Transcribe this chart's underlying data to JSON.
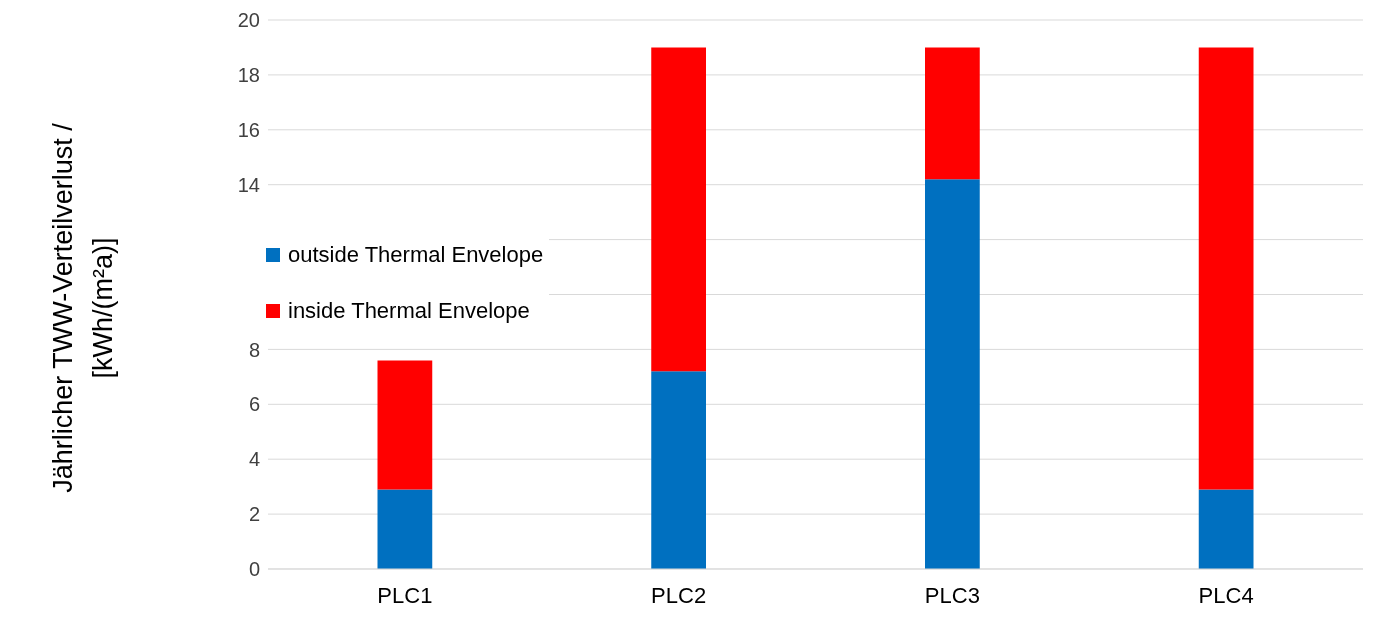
{
  "chart_data": {
    "type": "bar",
    "stacked": true,
    "ylabel": "Jährlicher TWW-Verteilverlust / [kWh/(m²a)]",
    "categories": [
      "PLC1",
      "PLC2",
      "PLC3",
      "PLC4"
    ],
    "series": [
      {
        "name": "outside Thermal Envelope",
        "color": "#0070c0",
        "values": [
          2.9,
          7.2,
          14.2,
          2.9
        ]
      },
      {
        "name": "inside Thermal Envelope",
        "color": "#ff0000",
        "values": [
          4.7,
          11.8,
          4.8,
          16.1
        ]
      }
    ],
    "ylim": [
      0,
      20
    ],
    "yticks": [
      0,
      2,
      4,
      6,
      8,
      {
        "value": 10,
        "label": null
      },
      {
        "value": 12,
        "label": null
      },
      14,
      16,
      18,
      20
    ],
    "grid": "y",
    "legend": "left"
  }
}
